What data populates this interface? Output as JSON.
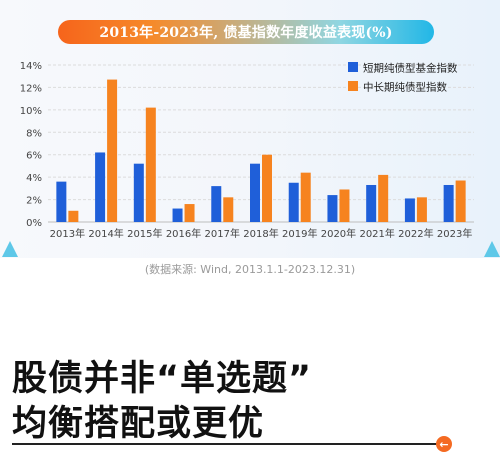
{
  "chart_data": {
    "type": "bar",
    "title": "2013年-2023年, 债基指数年度收益表现(%)",
    "categories": [
      "2013年",
      "2014年",
      "2015年",
      "2016年",
      "2017年",
      "2018年",
      "2019年",
      "2020年",
      "2021年",
      "2022年",
      "2023年"
    ],
    "series": [
      {
        "name": "短期纯债型基金指数",
        "color": "#1f5fd9",
        "values": [
          3.6,
          6.2,
          5.2,
          1.2,
          3.2,
          5.2,
          3.5,
          2.4,
          3.3,
          2.1,
          3.3
        ]
      },
      {
        "name": "中长期纯债型指数",
        "color": "#f6831f",
        "values": [
          1.0,
          12.7,
          10.2,
          1.6,
          2.2,
          6.0,
          4.4,
          2.9,
          4.2,
          2.2,
          3.7
        ]
      }
    ],
    "yticks": [
      "0%",
      "2%",
      "4%",
      "6%",
      "8%",
      "10%",
      "12%",
      "14%"
    ],
    "ylim": [
      0,
      14
    ],
    "grid": true,
    "legend_position": "top-right"
  },
  "source_note": "(数据来源: Wind, 2013.1.1-2023.12.31)",
  "headline": {
    "line1": "股债并非“单选题”",
    "line2": "均衡搭配或更优"
  },
  "nav": {
    "arrow_glyph": "←"
  },
  "colors": {
    "accent": "#f46a22",
    "corner_triangle": "#5ec8e8"
  }
}
